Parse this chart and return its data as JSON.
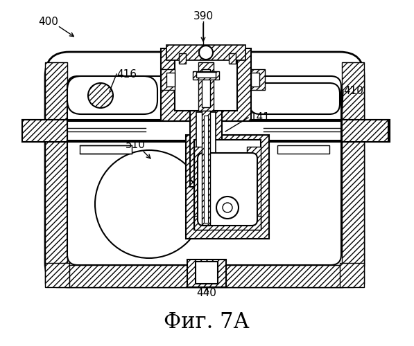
{
  "title": "Фиг. 7А",
  "bg_color": "#ffffff",
  "line_color": "#000000",
  "title_fontsize": 22,
  "label_fontsize": 11
}
